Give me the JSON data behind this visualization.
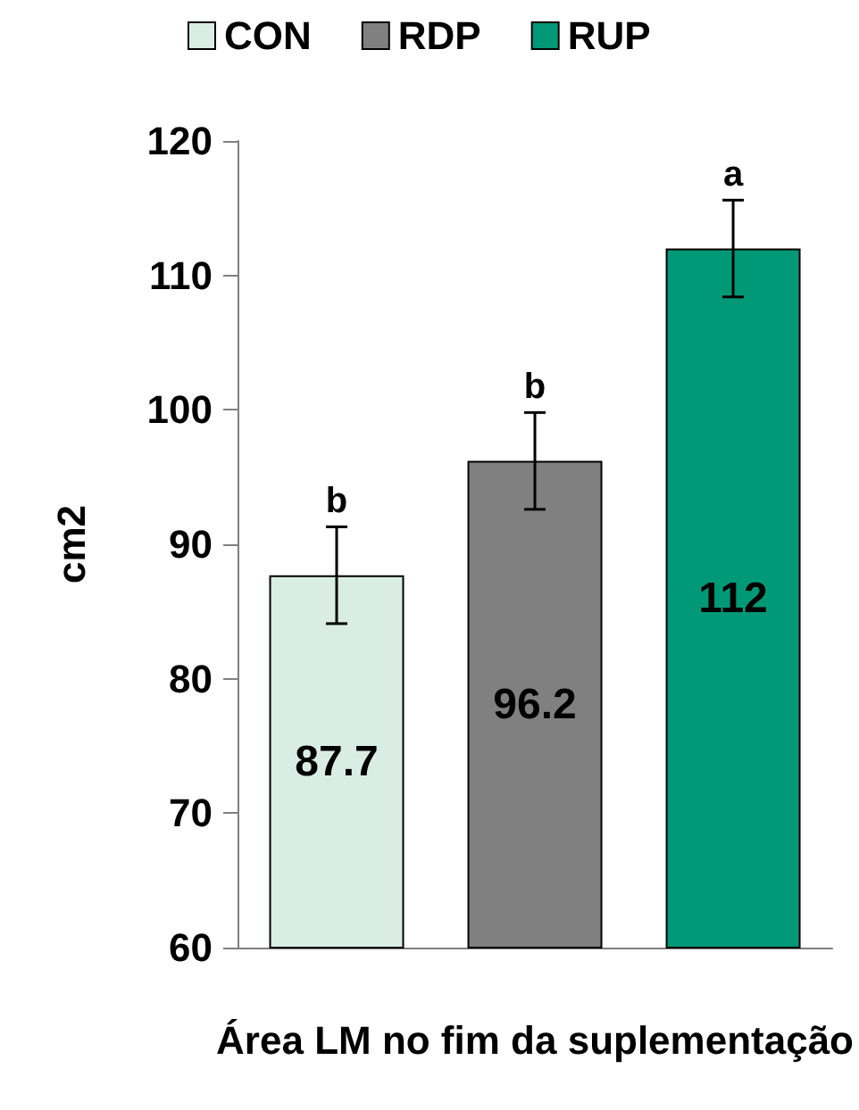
{
  "chart_data": {
    "type": "bar",
    "ylabel": "cm2",
    "xlabel": "Área LM no fim da suplementação",
    "categories": [
      null,
      null,
      null
    ],
    "stacked": true,
    "series": [
      {
        "name": "CON",
        "color": "#d9ede5",
        "values": [
          87.7,
          null,
          null
        ],
        "errors": [
          3.6,
          null,
          null
        ]
      },
      {
        "name": "RDP",
        "color": "#808080",
        "values": [
          null,
          96.2,
          null
        ],
        "errors": [
          null,
          3.6,
          null
        ]
      },
      {
        "name": "RUP",
        "color": "#009977",
        "values": [
          null,
          null,
          112
        ],
        "errors": [
          null,
          null,
          3.6
        ]
      }
    ],
    "annotations": [
      "b",
      "b",
      "a"
    ],
    "ylim": [
      60,
      120
    ],
    "yticks": [
      60,
      70,
      80,
      90,
      100,
      110,
      120
    ],
    "data_labels": true,
    "grid": false,
    "legend": "top"
  }
}
